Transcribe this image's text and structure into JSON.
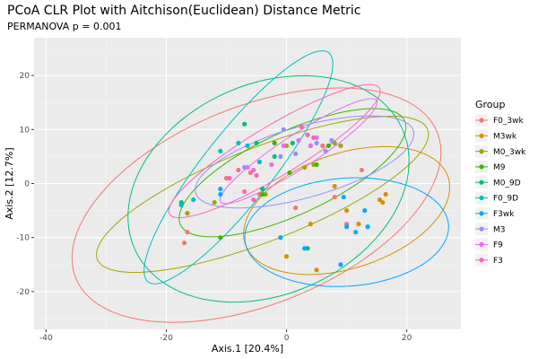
{
  "chart_data": {
    "type": "scatter",
    "title": "PCoA CLR Plot with Aitchison(Euclidean) Distance Metric",
    "subtitle": "PERMANOVA p = 0.001",
    "xlabel": "Axis.1  [20.4%]",
    "ylabel": "Axis.2  [12.7%]",
    "xlim": [
      -42,
      29
    ],
    "ylim": [
      -27,
      27
    ],
    "xticks": [
      -40,
      -20,
      0,
      20
    ],
    "yticks": [
      -20,
      -10,
      0,
      10,
      20
    ],
    "legend_title": "Group",
    "legend_position": "right",
    "series": [
      {
        "name": "F0_3wk",
        "color": "#F8766D",
        "points": [
          [
            -16.5,
            -9
          ],
          [
            -17,
            -11
          ],
          [
            8,
            -2.5
          ],
          [
            12.5,
            2.5
          ],
          [
            -10,
            1
          ],
          [
            -8,
            2.5
          ],
          [
            -6,
            2
          ],
          [
            6,
            7
          ],
          [
            10,
            -7.5
          ],
          [
            1.5,
            -4.5
          ],
          [
            -4.5,
            -2
          ]
        ],
        "ellipse": {
          "cx": -5,
          "cy": -4,
          "rx": 33,
          "ry": 18,
          "angle": 26
        }
      },
      {
        "name": "M3wk",
        "color": "#D89000",
        "points": [
          [
            0,
            -13.5
          ],
          [
            5,
            -16
          ],
          [
            4,
            -7.5
          ],
          [
            8,
            -0.5
          ],
          [
            10,
            -5
          ],
          [
            12,
            -7.5
          ],
          [
            15.5,
            -3
          ],
          [
            16.5,
            -2
          ],
          [
            16,
            -3.5
          ]
        ],
        "ellipse": {
          "cx": 10,
          "cy": -5,
          "rx": 18,
          "ry": 10.5,
          "angle": 22
        }
      },
      {
        "name": "M0_3wk",
        "color": "#A3A500",
        "points": [
          [
            -3.5,
            -2
          ],
          [
            -12,
            -3.5
          ],
          [
            -16.5,
            -5.5
          ],
          [
            0,
            7
          ],
          [
            3,
            3
          ],
          [
            4.5,
            3.5
          ],
          [
            8,
            7.5
          ],
          [
            9,
            7
          ]
        ],
        "ellipse": {
          "cx": -4,
          "cy": -2,
          "rx": 30,
          "ry": 8.5,
          "angle": 24
        }
      },
      {
        "name": "M9",
        "color": "#39B600",
        "points": [
          [
            -11,
            -10
          ],
          [
            -4,
            -1
          ],
          [
            -2,
            7.5
          ],
          [
            0.5,
            2
          ],
          [
            5,
            3.5
          ],
          [
            7,
            7
          ],
          [
            -4,
            -2
          ]
        ],
        "ellipse": {
          "cx": 1,
          "cy": 2,
          "rx": 21,
          "ry": 7.5,
          "angle": 28
        }
      },
      {
        "name": "M0_9D",
        "color": "#00BF7D",
        "points": [
          [
            -7,
            11
          ],
          [
            -5,
            7.5
          ],
          [
            -2,
            5
          ],
          [
            1,
            7.5
          ],
          [
            -4,
            -1
          ],
          [
            -17.5,
            -3.5
          ],
          [
            3.5,
            -12
          ]
        ],
        "ellipse": {
          "cx": -3,
          "cy": -1,
          "rx": 25,
          "ry": 19,
          "angle": 33
        }
      },
      {
        "name": "F0_9D",
        "color": "#00BFC4",
        "points": [
          [
            -17.5,
            -4
          ],
          [
            -15.5,
            -3
          ],
          [
            -11,
            6
          ],
          [
            -8,
            7.5
          ],
          [
            -6.5,
            7
          ],
          [
            -4.5,
            4
          ]
        ],
        "ellipse": {
          "cx": -8,
          "cy": 3,
          "rx": 26,
          "ry": 6,
          "angle": 55
        }
      },
      {
        "name": "F3wk",
        "color": "#00A9FF",
        "points": [
          [
            -11,
            -1
          ],
          [
            -11,
            -2
          ],
          [
            -1,
            -10
          ],
          [
            3,
            -12
          ],
          [
            9,
            -15
          ],
          [
            9.5,
            -2.5
          ],
          [
            10,
            -8
          ],
          [
            11.5,
            -9
          ],
          [
            13,
            -5
          ],
          [
            13.5,
            -8
          ]
        ],
        "ellipse": {
          "cx": 10,
          "cy": -9,
          "rx": 17,
          "ry": 10,
          "angle": 5
        }
      },
      {
        "name": "M3",
        "color": "#9590FF",
        "points": [
          [
            -0.5,
            10
          ],
          [
            1.5,
            5.5
          ],
          [
            4,
            7
          ],
          [
            5,
            7.5
          ],
          [
            6.5,
            6
          ],
          [
            7.5,
            8
          ],
          [
            -1,
            5
          ],
          [
            -7,
            3
          ]
        ],
        "ellipse": {
          "cx": 3,
          "cy": 4,
          "rx": 19,
          "ry": 6.5,
          "angle": 18
        }
      },
      {
        "name": "F9",
        "color": "#E76BF3",
        "points": [
          [
            -6.5,
            3
          ],
          [
            -5.5,
            2.5
          ],
          [
            -2.5,
            3.5
          ],
          [
            2,
            8
          ],
          [
            3.5,
            9
          ],
          [
            4,
            7
          ],
          [
            5,
            8.5
          ],
          [
            -0.5,
            7
          ]
        ],
        "ellipse": {
          "cx": 2,
          "cy": 6,
          "rx": 16,
          "ry": 3,
          "angle": 36
        }
      },
      {
        "name": "F3",
        "color": "#FF62BC",
        "points": [
          [
            -5,
            1.5
          ],
          [
            2.5,
            10.5
          ],
          [
            3.5,
            9
          ],
          [
            4.5,
            8.5
          ],
          [
            -9.5,
            1
          ],
          [
            -7,
            -1.5
          ],
          [
            -5.5,
            -3
          ]
        ],
        "ellipse": {
          "cx": -2,
          "cy": 6,
          "rx": 21,
          "ry": 4.5,
          "angle": 34
        }
      }
    ]
  }
}
